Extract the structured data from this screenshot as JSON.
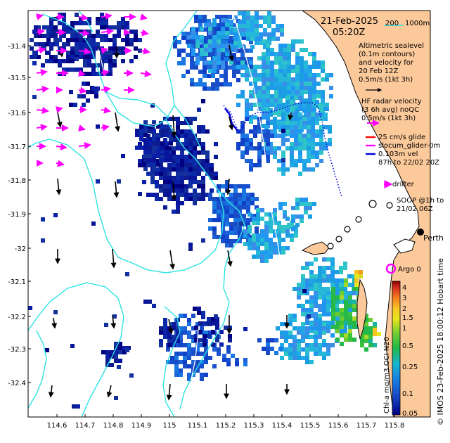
{
  "header": {
    "date": "21-Feb-2025",
    "time": "05:20Z",
    "scale_200": "200",
    "scale_1000": "1000m"
  },
  "legend": {
    "altimetry_1": "Altimetric sealevel",
    "altimetry_2": "(0.1m contours)",
    "altimetry_3": "and velocity for",
    "altimetry_4": "20 Feb 12Z",
    "altimetry_5": "0.5m/s (1kt 3h)",
    "hf_1": "HF radar velocity",
    "hf_2": "(3 6h avg) noQC",
    "hf_3": "0.5m/s (1kt 3h)",
    "glide": "25 cm/s glide",
    "glider": "slocum_glider-0m",
    "vel": "0.103m vel",
    "period": "87h to 22/02 20Z",
    "drifter": "drifter",
    "soop_1": "SOOP @1h to",
    "soop_2": "21/02 06Z",
    "argo": "Argo 0",
    "city": "Perth"
  },
  "axes": {
    "lat_ticks": [
      "-31.4",
      "-31.5",
      "-31.6",
      "-31.7",
      "-31.8",
      "-31.9",
      "-32",
      "-32.1",
      "-32.2",
      "-32.3",
      "-32.4"
    ],
    "lon_ticks": [
      "114.6",
      "114.7",
      "114.8",
      "114.9",
      "115",
      "115.1",
      "115.2",
      "115.3",
      "115.4",
      "115.5",
      "115.6",
      "115.7",
      "115.8"
    ]
  },
  "colorbar": {
    "label": "Chl-a mg/m3 OCI N20",
    "ticks": [
      "4",
      "3",
      "2",
      "1.5",
      "1",
      "0.5",
      "0.25",
      "0.1",
      "0.05"
    ],
    "colors": [
      "#8b0000",
      "#d7301f",
      "#f57b20",
      "#f7c323",
      "#e8e820",
      "#7dd030",
      "#22b84a",
      "#18b4d0",
      "#1877e0",
      "#1440c0",
      "#000080"
    ]
  },
  "credit": "© IMOS 23-Feb-2025 18:00:12 Hobart time"
}
